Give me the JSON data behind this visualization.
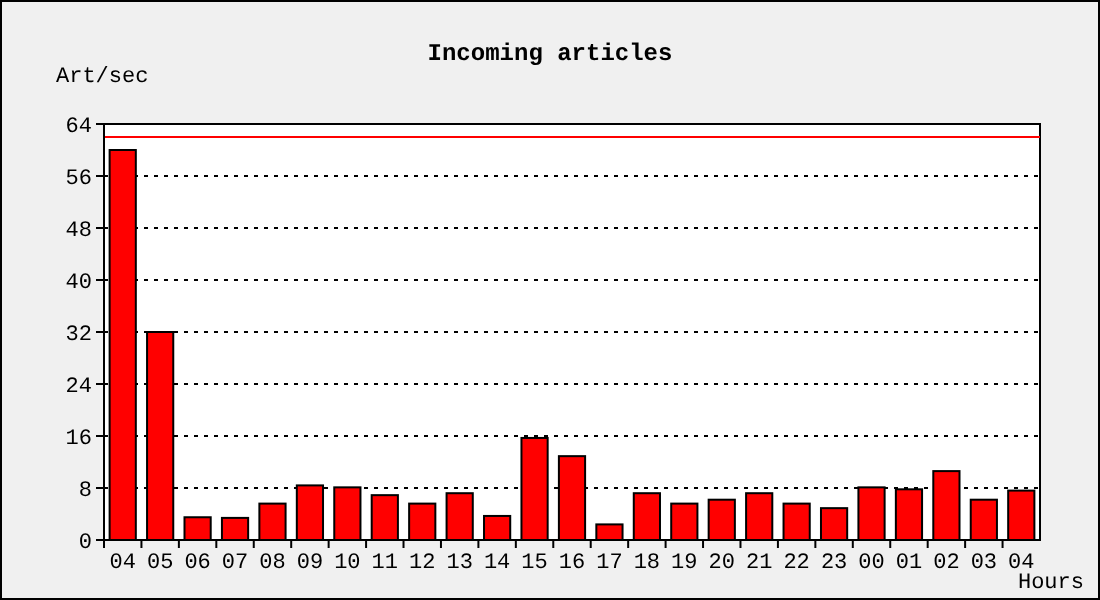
{
  "chart_data": {
    "type": "bar",
    "title": "Incoming articles",
    "ylabel": "Art/sec",
    "xlabel": "Hours",
    "categories": [
      "04",
      "05",
      "06",
      "07",
      "08",
      "09",
      "10",
      "11",
      "12",
      "13",
      "14",
      "15",
      "16",
      "17",
      "18",
      "19",
      "20",
      "21",
      "22",
      "23",
      "00",
      "01",
      "02",
      "03",
      "04"
    ],
    "values": [
      60,
      32,
      3.5,
      3.4,
      5.6,
      8.4,
      8.1,
      6.9,
      5.6,
      7.2,
      3.7,
      15.7,
      12.9,
      2.4,
      7.2,
      5.6,
      6.2,
      7.2,
      5.6,
      4.9,
      8.1,
      7.8,
      10.6,
      6.2,
      7.6
    ],
    "color": "#ff0000",
    "ylim": [
      0,
      64
    ],
    "yticks": [
      0,
      8,
      16,
      24,
      32,
      40,
      48,
      56,
      64
    ],
    "grid": "y",
    "ref_lines": [
      {
        "axis": "y",
        "value": 62,
        "color": "#ff0000",
        "line_style": "solid"
      }
    ]
  }
}
